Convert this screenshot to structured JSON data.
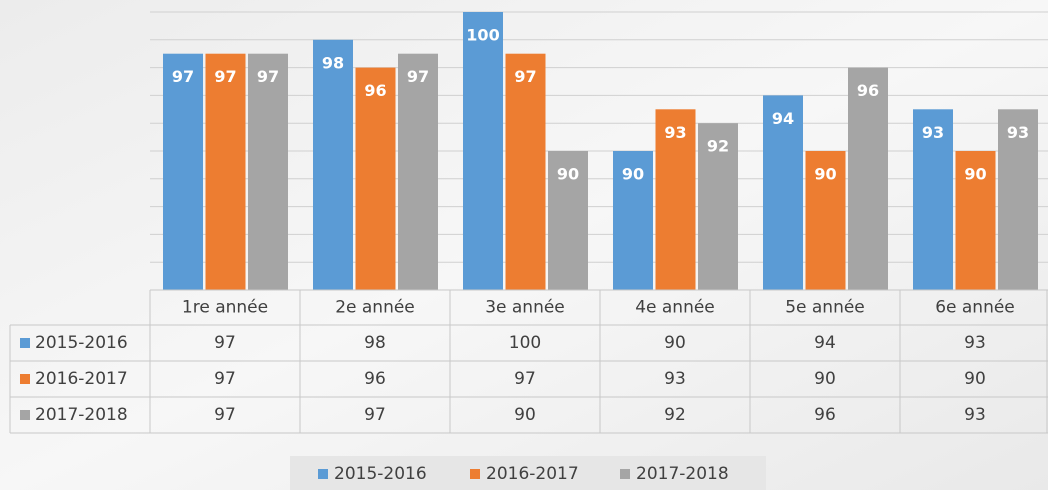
{
  "chart_data": {
    "type": "bar",
    "categories": [
      "1re année",
      "2e année",
      "3e année",
      "4e année",
      "5e année",
      "6e année"
    ],
    "series": [
      {
        "name": "2015-2016",
        "color": "#5b9bd5",
        "values": [
          97,
          98,
          100,
          90,
          94,
          93
        ]
      },
      {
        "name": "2016-2017",
        "color": "#ed7d31",
        "values": [
          97,
          96,
          97,
          93,
          90,
          90
        ]
      },
      {
        "name": "2017-2018",
        "color": "#a5a5a5",
        "values": [
          97,
          97,
          90,
          92,
          96,
          93
        ]
      }
    ],
    "ylim": [
      80,
      100
    ],
    "yticks": [
      80,
      82,
      84,
      86,
      88,
      90,
      92,
      94,
      96,
      98,
      100
    ],
    "grid": true,
    "data_table": true,
    "legend": "bottom"
  }
}
